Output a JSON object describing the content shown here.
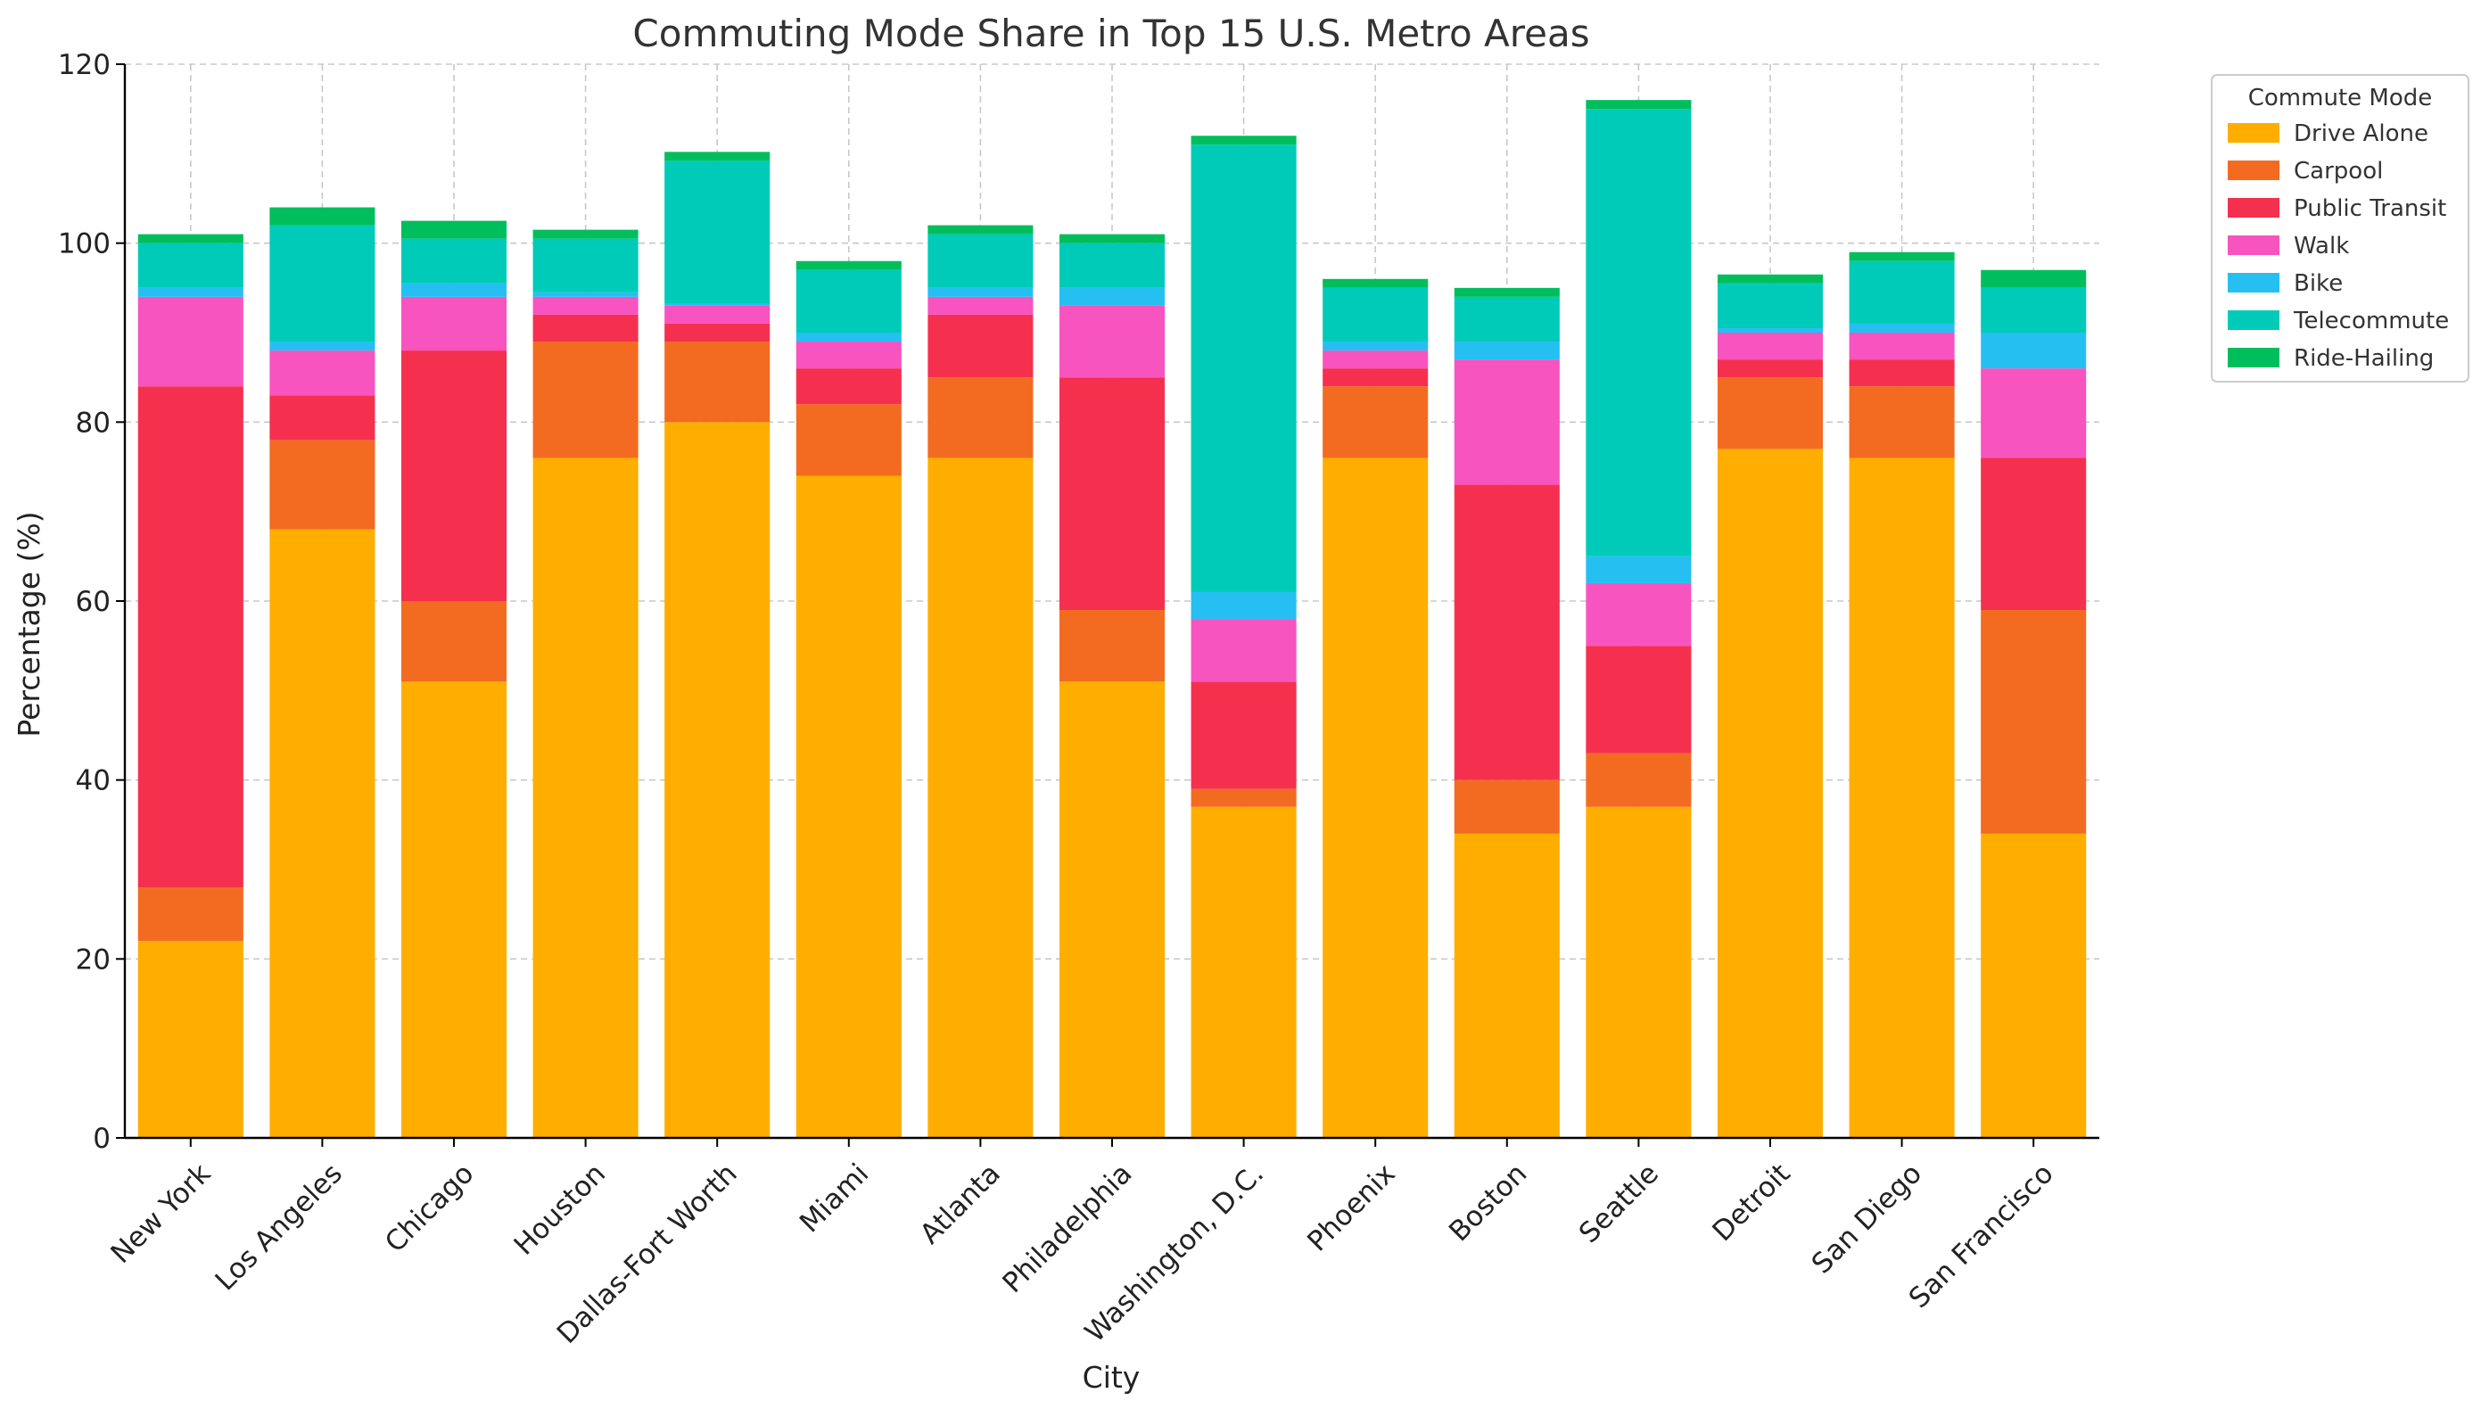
{
  "chart_data": {
    "type": "bar",
    "stacked": true,
    "title": "Commuting Mode Share in Top 15 U.S. Metro Areas",
    "xlabel": "City",
    "ylabel": "Percentage (%)",
    "ylim": [
      0,
      120
    ],
    "yticks": [
      0,
      20,
      40,
      60,
      80,
      100,
      120
    ],
    "grid": true,
    "legend_title": "Commute Mode",
    "legend_position": "outside-top-right",
    "categories": [
      "New York",
      "Los Angeles",
      "Chicago",
      "Houston",
      "Dallas-Fort Worth",
      "Miami",
      "Atlanta",
      "Philadelphia",
      "Washington, D.C.",
      "Phoenix",
      "Boston",
      "Seattle",
      "Detroit",
      "San Diego",
      "San Francisco"
    ],
    "series": [
      {
        "name": "Drive Alone",
        "color": "#FFAE00",
        "values": [
          22,
          68,
          51,
          76,
          80,
          74,
          76,
          51,
          37,
          76,
          34,
          37,
          77,
          76,
          34
        ]
      },
      {
        "name": "Carpool",
        "color": "#F26B21",
        "values": [
          6,
          10,
          9,
          13,
          9,
          8,
          9,
          8,
          2,
          8,
          6,
          6,
          8,
          8,
          25
        ]
      },
      {
        "name": "Public Transit",
        "color": "#F5304F",
        "values": [
          56,
          5,
          28,
          3,
          2,
          4,
          7,
          26,
          12,
          2,
          33,
          12,
          2,
          3,
          17
        ]
      },
      {
        "name": "Walk",
        "color": "#F754C0",
        "values": [
          10,
          5,
          6,
          2,
          2,
          3,
          2,
          8,
          7,
          2,
          14,
          7,
          3,
          3,
          10
        ]
      },
      {
        "name": "Bike",
        "color": "#26BFF2",
        "values": [
          1,
          1,
          1.5,
          0.5,
          0.2,
          1,
          1,
          2,
          3,
          1,
          2,
          3,
          0.5,
          1,
          4
        ]
      },
      {
        "name": "Telecommute",
        "color": "#00CBB8",
        "values": [
          5,
          13,
          5,
          6,
          16,
          7,
          6,
          5,
          50,
          6,
          5,
          50,
          5,
          7,
          5
        ]
      },
      {
        "name": "Ride-Hailing",
        "color": "#00BE5C",
        "values": [
          1,
          2,
          2,
          1,
          1,
          1,
          1,
          1,
          1,
          1,
          1,
          1,
          1,
          1,
          2
        ]
      }
    ]
  }
}
